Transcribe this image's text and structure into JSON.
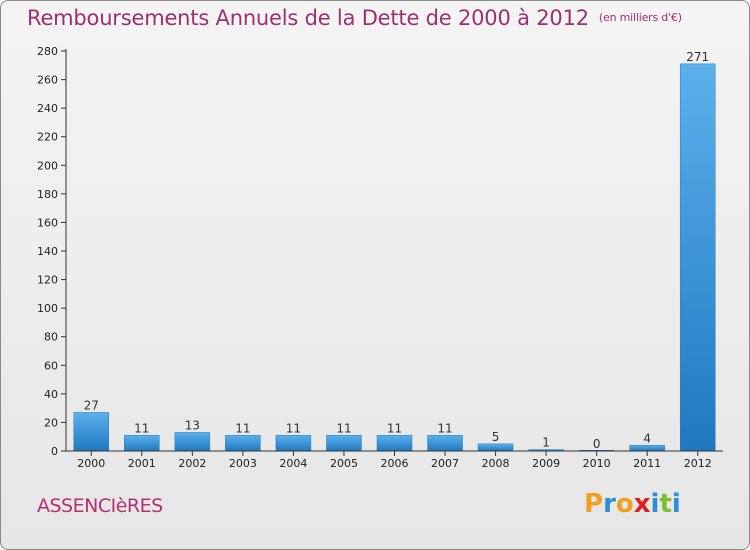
{
  "header": {
    "title": "Remboursements Annuels de la Dette de 2000 à 2012",
    "unit": "(en milliers d'€)"
  },
  "commune": "ASSENCIèRES",
  "brand": {
    "letters": [
      "P",
      "r",
      "o",
      "x",
      "i",
      "t",
      "i"
    ],
    "colors": [
      "#f0a020",
      "#2a8fd8",
      "#f0a020",
      "#e02020",
      "#2a8fd8",
      "#7cc030",
      "#2a8fd8"
    ]
  },
  "colors": {
    "bar_light": "#5cb0ec",
    "bar_dark": "#1f78c0",
    "axis": "#333333",
    "title": "#a0306a"
  },
  "chart_data": {
    "type": "bar",
    "title": "Remboursements Annuels de la Dette de 2000 à 2012",
    "ylabel": "",
    "xlabel": "",
    "categories": [
      "2000",
      "2001",
      "2002",
      "2003",
      "2004",
      "2005",
      "2006",
      "2007",
      "2008",
      "2009",
      "2010",
      "2011",
      "2012"
    ],
    "values": [
      27,
      11,
      13,
      11,
      11,
      11,
      11,
      11,
      5,
      1,
      0,
      4,
      271
    ],
    "ylim": [
      0,
      280
    ],
    "yticks": [
      0,
      20,
      40,
      60,
      80,
      100,
      120,
      140,
      160,
      180,
      200,
      220,
      240,
      260,
      280
    ],
    "grid": false
  }
}
